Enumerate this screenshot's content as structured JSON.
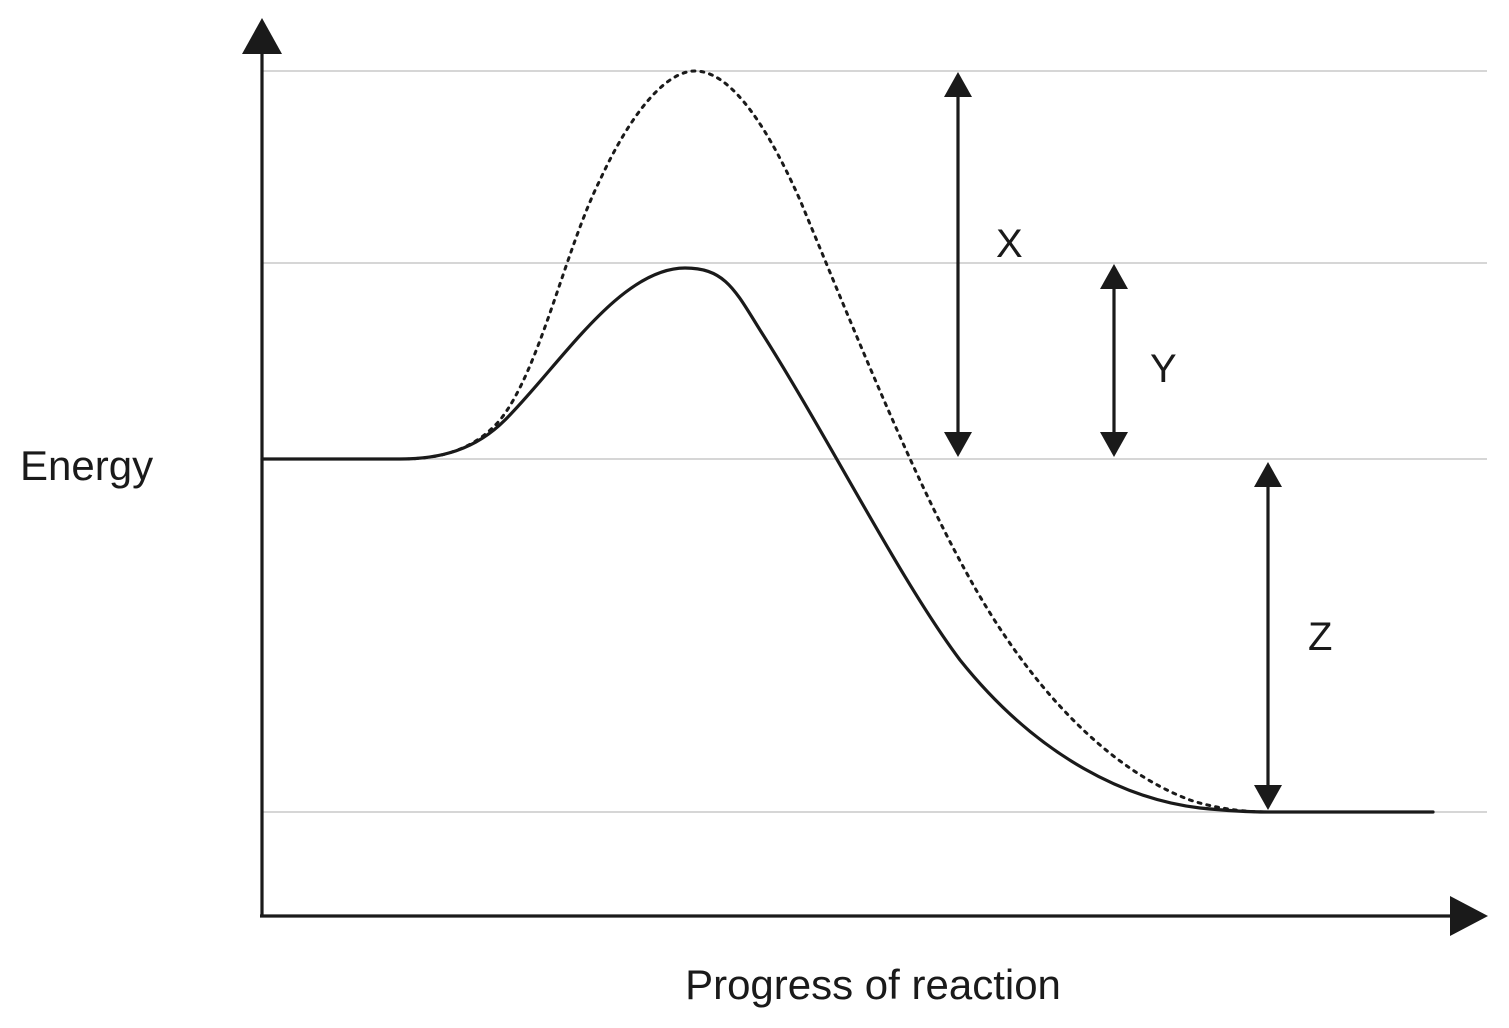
{
  "axes": {
    "y_label": "Energy",
    "x_label": "Progress of reaction"
  },
  "markers": {
    "x": "X",
    "y": "Y",
    "z": "Z"
  },
  "curves": {
    "solid": "solid",
    "dotted": "dotted"
  },
  "colors": {
    "ink": "#1a1a1a",
    "reference_lines": "#c8c8c8",
    "background": "#ffffff"
  }
}
